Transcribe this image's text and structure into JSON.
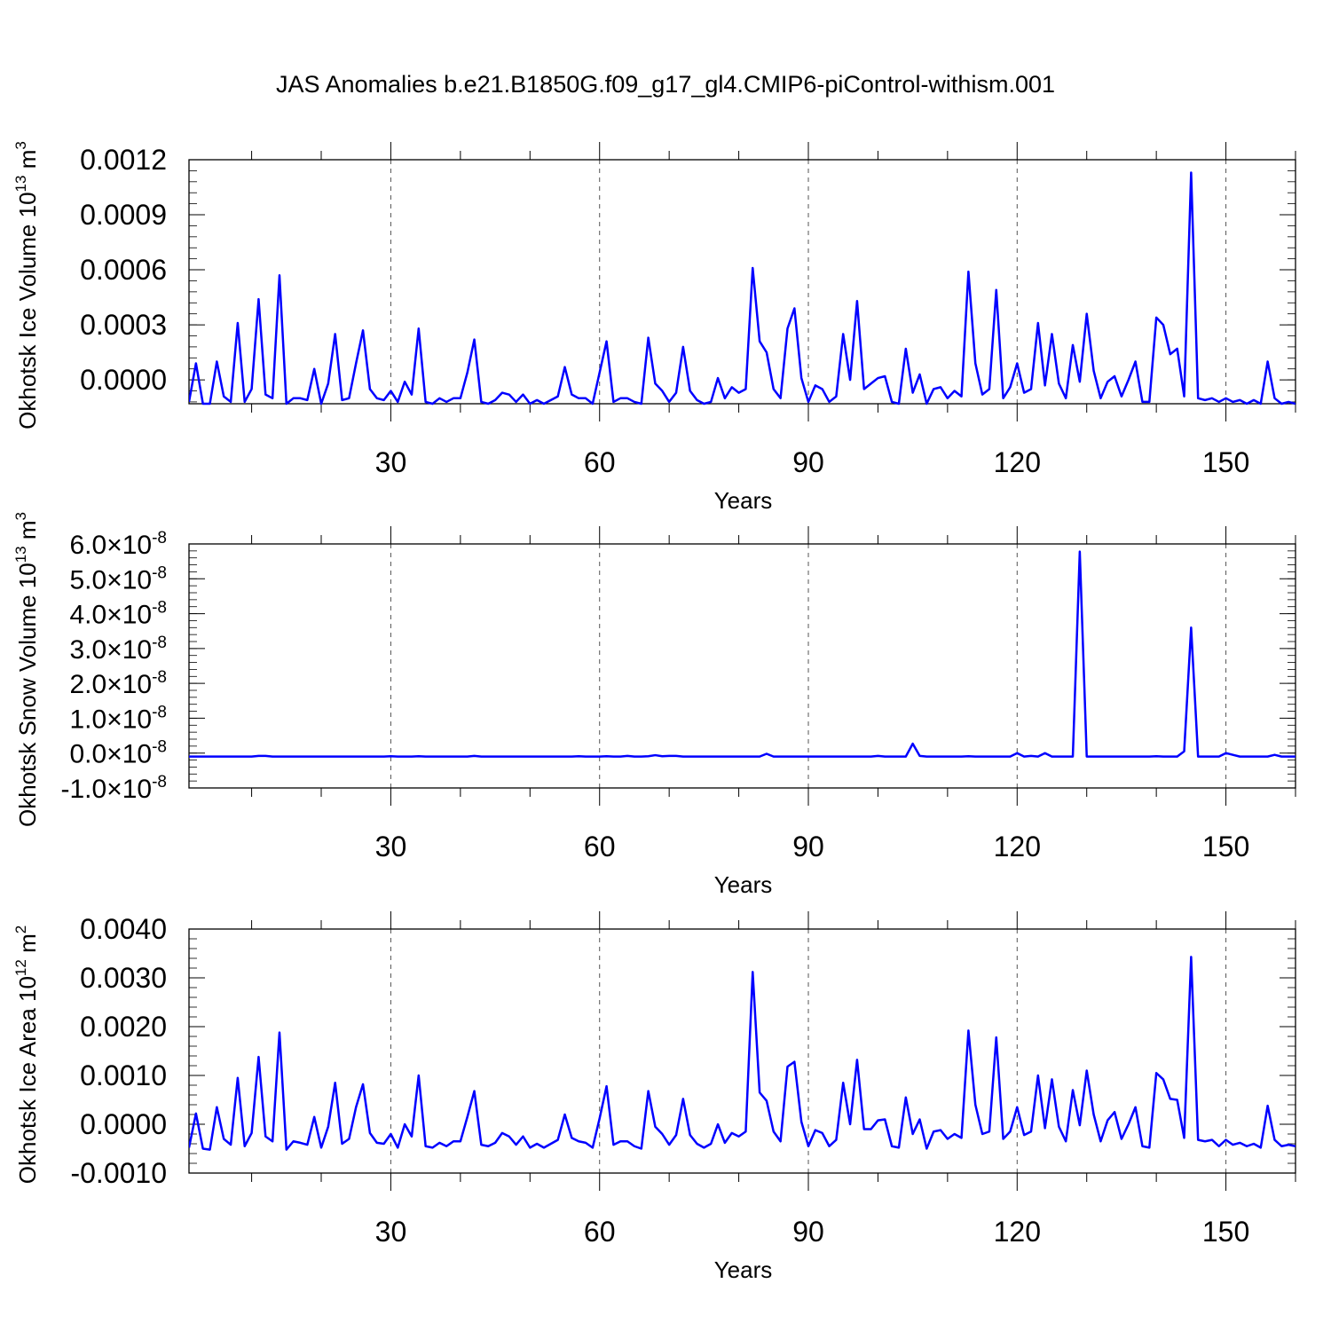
{
  "title": "JAS Anomalies b.e21.B1850G.f09_g17_gl4.CMIP6-piControl-withism.001",
  "line_color": "#0000ff",
  "chart_data": [
    {
      "type": "line",
      "ylabel_main": "Okhotsk Ice Volume 10",
      "ylabel_exp": "13",
      "ylabel_unit": " m",
      "ylabel_unit_exp": "3",
      "xlabel": "Years",
      "xlim": [
        1,
        160
      ],
      "ylim": [
        -0.00013,
        0.0012
      ],
      "xticks": [
        30,
        60,
        90,
        120,
        150
      ],
      "xtick_labels": [
        "30",
        "60",
        "90",
        "120",
        "150"
      ],
      "yticks": [
        0.0,
        0.0003,
        0.0006,
        0.0009,
        0.0012
      ],
      "ytick_labels": [
        "0.0000",
        "0.0003",
        "0.0006",
        "0.0009",
        "0.0012"
      ],
      "grid": "vertical dashed at x ticks",
      "x_start": 1,
      "values": [
        -0.00012,
        9e-05,
        -0.00013,
        -0.00013,
        0.0001,
        -9e-05,
        -0.00012,
        0.00031,
        -0.00012,
        -5e-05,
        0.00044,
        -8e-05,
        -0.0001,
        0.00057,
        -0.00013,
        -0.0001,
        -0.0001,
        -0.00011,
        6e-05,
        -0.00013,
        -2e-05,
        0.00025,
        -0.00011,
        -0.0001,
        9e-05,
        0.00027,
        -5e-05,
        -0.0001,
        -0.00011,
        -6e-05,
        -0.00012,
        -1e-05,
        -8e-05,
        0.00028,
        -0.00012,
        -0.00013,
        -0.0001,
        -0.00012,
        -0.0001,
        -0.0001,
        4e-05,
        0.00022,
        -0.00012,
        -0.00013,
        -0.00011,
        -7e-05,
        -8e-05,
        -0.00012,
        -8e-05,
        -0.00013,
        -0.00011,
        -0.00013,
        -0.00011,
        -9e-05,
        7e-05,
        -8e-05,
        -0.0001,
        -0.0001,
        -0.00013,
        4e-05,
        0.00021,
        -0.00012,
        -0.0001,
        -0.0001,
        -0.00012,
        -0.00013,
        0.00023,
        -2e-05,
        -6e-05,
        -0.00012,
        -7e-05,
        0.00018,
        -6e-05,
        -0.00011,
        -0.00013,
        -0.00012,
        1e-05,
        -0.0001,
        -4e-05,
        -7e-05,
        -5e-05,
        0.00061,
        0.00021,
        0.00015,
        -5e-05,
        -0.0001,
        0.00028,
        0.00039,
        1e-05,
        -0.00012,
        -3e-05,
        -5e-05,
        -0.00012,
        -9e-05,
        0.00025,
        0.0,
        0.00043,
        -5e-05,
        -2e-05,
        1e-05,
        2e-05,
        -0.00012,
        -0.00013,
        0.00017,
        -7e-05,
        3e-05,
        -0.00013,
        -5e-05,
        -4e-05,
        -0.0001,
        -6e-05,
        -9e-05,
        0.00059,
        9e-05,
        -8e-05,
        -5e-05,
        0.00049,
        -0.0001,
        -4e-05,
        9e-05,
        -7e-05,
        -5e-05,
        0.00031,
        -3e-05,
        0.00025,
        -2e-05,
        -0.0001,
        0.00019,
        -1e-05,
        0.00036,
        5e-05,
        -0.0001,
        -1e-05,
        2e-05,
        -9e-05,
        0.0,
        0.0001,
        -0.00012,
        -0.00012,
        0.00034,
        0.0003,
        0.00014,
        0.00017,
        -9e-05,
        0.00113,
        -0.0001,
        -0.00011,
        -0.0001,
        -0.00012,
        -0.0001,
        -0.00012,
        -0.00011,
        -0.00013,
        -0.00011,
        -0.00013,
        0.0001,
        -0.0001,
        -0.00013,
        -0.00012,
        -0.00013
      ]
    },
    {
      "type": "line",
      "ylabel_main": "Okhotsk Snow Volume 10",
      "ylabel_exp": "13",
      "ylabel_unit": " m",
      "ylabel_unit_exp": "3",
      "xlabel": "Years",
      "xlim": [
        1,
        160
      ],
      "ylim": [
        -1e-08,
        6e-08
      ],
      "xticks": [
        30,
        60,
        90,
        120,
        150
      ],
      "xtick_labels": [
        "30",
        "60",
        "90",
        "120",
        "150"
      ],
      "yticks": [
        -1e-08,
        0.0,
        1e-08,
        2e-08,
        3e-08,
        4e-08,
        5e-08,
        6e-08
      ],
      "ytick_mantissas": [
        "-1.0",
        "0.0",
        "1.0",
        "2.0",
        "3.0",
        "4.0",
        "5.0",
        "6.0"
      ],
      "ytick_times": "×10",
      "ytick_exp": "-8",
      "grid": "vertical dashed at x ticks",
      "x_start": 1,
      "values": [
        -1e-09,
        -1e-09,
        -1e-09,
        -1e-09,
        -1e-09,
        -1e-09,
        -1e-09,
        -1e-09,
        -1e-09,
        -1e-09,
        -8e-10,
        -8e-10,
        -1e-09,
        -1e-09,
        -1e-09,
        -1e-09,
        -1e-09,
        -1e-09,
        -1e-09,
        -1e-09,
        -1e-09,
        -1e-09,
        -1e-09,
        -1e-09,
        -1e-09,
        -1e-09,
        -1e-09,
        -1e-09,
        -1e-09,
        -9e-10,
        -1e-09,
        -1e-09,
        -1e-09,
        -9e-10,
        -1e-09,
        -1e-09,
        -1e-09,
        -1e-09,
        -1e-09,
        -1e-09,
        -1e-09,
        -8e-10,
        -1e-09,
        -1e-09,
        -1e-09,
        -1e-09,
        -1e-09,
        -1e-09,
        -1e-09,
        -1e-09,
        -1e-09,
        -1e-09,
        -1e-09,
        -1e-09,
        -1e-09,
        -1e-09,
        -9e-10,
        -1e-09,
        -1e-09,
        -1e-09,
        -9e-10,
        -1e-09,
        -1e-09,
        -8e-10,
        -1e-09,
        -1e-09,
        -9e-10,
        -6e-10,
        -9e-10,
        -8e-10,
        -8e-10,
        -1e-09,
        -1e-09,
        -1e-09,
        -1e-09,
        -1e-09,
        -1e-09,
        -1e-09,
        -1e-09,
        -1e-09,
        -1e-09,
        -1e-09,
        -1e-09,
        -2e-10,
        -1e-09,
        -1e-09,
        -1e-09,
        -1e-09,
        -1e-09,
        -1e-09,
        -1e-09,
        -1e-09,
        -1e-09,
        -1e-09,
        -1e-09,
        -1e-09,
        -1e-09,
        -1e-09,
        -1e-09,
        -8e-10,
        -1e-09,
        -1e-09,
        -1e-09,
        -1e-09,
        2.7e-09,
        -8e-10,
        -1e-09,
        -1e-09,
        -1e-09,
        -1e-09,
        -1e-09,
        -1e-09,
        -9e-10,
        -1e-09,
        -1e-09,
        -1e-09,
        -1e-09,
        -1e-09,
        -1e-09,
        0.0,
        -1e-09,
        -8e-10,
        -1e-09,
        0.0,
        -1e-09,
        -1e-09,
        -1e-09,
        -1e-09,
        5.78e-08,
        -1e-09,
        -1e-09,
        -1e-09,
        -1e-09,
        -1e-09,
        -1e-09,
        -1e-09,
        -1e-09,
        -1e-09,
        -1e-09,
        -9e-10,
        -1e-09,
        -1e-09,
        -1e-09,
        5e-10,
        3.6e-08,
        -1e-09,
        -1e-09,
        -1e-09,
        -1e-09,
        0.0,
        -5e-10,
        -1e-09,
        -1e-09,
        -1e-09,
        -1e-09,
        -1e-09,
        -5e-10,
        -1e-09,
        -1e-09,
        -1e-09
      ]
    },
    {
      "type": "line",
      "ylabel_main": "Okhotsk Ice Area 10",
      "ylabel_exp": "12",
      "ylabel_unit": " m",
      "ylabel_unit_exp": "2",
      "xlabel": "Years",
      "xlim": [
        1,
        160
      ],
      "ylim": [
        -0.001,
        0.004
      ],
      "xticks": [
        30,
        60,
        90,
        120,
        150
      ],
      "xtick_labels": [
        "30",
        "60",
        "90",
        "120",
        "150"
      ],
      "yticks": [
        -0.001,
        0.0,
        0.001,
        0.002,
        0.003,
        0.004
      ],
      "ytick_labels": [
        "-0.0010",
        "0.0000",
        "0.0010",
        "0.0020",
        "0.0030",
        "0.0040"
      ],
      "grid": "vertical dashed at x ticks",
      "x_start": 1,
      "values": [
        -0.00048,
        0.00022,
        -0.0005,
        -0.00052,
        0.00035,
        -0.0003,
        -0.00042,
        0.00095,
        -0.00045,
        -0.00018,
        0.00138,
        -0.00025,
        -0.00035,
        0.00188,
        -0.00052,
        -0.00035,
        -0.00038,
        -0.00042,
        0.00015,
        -0.00048,
        -5e-05,
        0.00085,
        -0.0004,
        -0.0003,
        0.00035,
        0.00082,
        -0.00018,
        -0.00038,
        -0.0004,
        -0.0002,
        -0.00048,
        0.0,
        -0.00025,
        0.001,
        -0.00045,
        -0.00048,
        -0.00038,
        -0.00045,
        -0.00035,
        -0.00035,
        0.00015,
        0.00068,
        -0.00042,
        -0.00045,
        -0.00038,
        -0.00018,
        -0.00025,
        -0.00042,
        -0.00025,
        -0.00048,
        -0.0004,
        -0.00048,
        -0.0004,
        -0.00032,
        0.0002,
        -0.00028,
        -0.00035,
        -0.00038,
        -0.00048,
        0.00012,
        0.00078,
        -0.00042,
        -0.00035,
        -0.00035,
        -0.00045,
        -0.0005,
        0.00068,
        -5e-05,
        -0.0002,
        -0.00042,
        -0.00022,
        0.00052,
        -0.00022,
        -0.0004,
        -0.00048,
        -0.0004,
        0.0,
        -0.00038,
        -0.00018,
        -0.00025,
        -0.00015,
        0.00312,
        0.00065,
        0.00048,
        -0.00015,
        -0.00035,
        0.00118,
        0.00128,
        5e-05,
        -0.00045,
        -0.00012,
        -0.00018,
        -0.00045,
        -0.00032,
        0.00085,
        0.0,
        0.00132,
        -0.0001,
        -0.0001,
        8e-05,
        0.0001,
        -0.00045,
        -0.00048,
        0.00055,
        -0.0002,
        0.0001,
        -0.0005,
        -0.00015,
        -0.00012,
        -0.0003,
        -0.0002,
        -0.00028,
        0.00192,
        0.0004,
        -0.0002,
        -0.00015,
        0.00178,
        -0.0003,
        -0.00015,
        0.00035,
        -0.00022,
        -0.00015,
        0.001,
        -8e-05,
        0.00092,
        -5e-05,
        -0.00035,
        0.0007,
        -2e-05,
        0.0011,
        0.0002,
        -0.00035,
        8e-05,
        0.00025,
        -0.0003,
        0.0,
        0.00035,
        -0.00045,
        -0.00048,
        0.00105,
        0.00092,
        0.00052,
        0.0005,
        -0.00028,
        0.00343,
        -0.00032,
        -0.00035,
        -0.00032,
        -0.00045,
        -0.00032,
        -0.00042,
        -0.00038,
        -0.00045,
        -0.0004,
        -0.00048,
        0.00038,
        -0.00032,
        -0.00045,
        -0.00042,
        -0.00045
      ]
    }
  ]
}
